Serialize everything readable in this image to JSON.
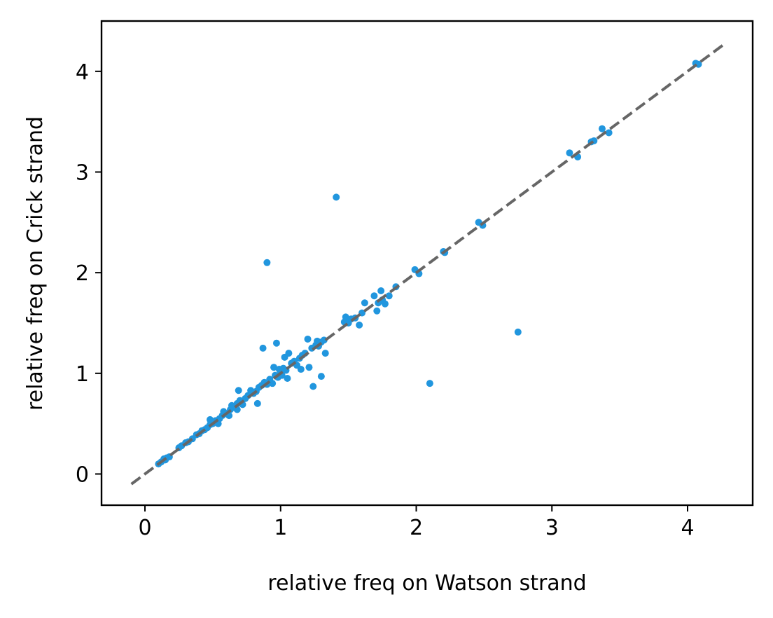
{
  "chart_data": {
    "type": "scatter",
    "title": "",
    "xlabel": "relative freq on Watson strand",
    "ylabel": "relative freq on Crick strand",
    "xlim": [
      -0.32,
      4.48
    ],
    "ylim": [
      -0.31,
      4.5
    ],
    "xticks": [
      "0",
      "1",
      "2",
      "3",
      "4"
    ],
    "yticks": [
      "0",
      "1",
      "2",
      "3",
      "4"
    ],
    "grid": false,
    "point_color": "#2196de",
    "reference_line": {
      "style": "dashed",
      "color": "#666666",
      "from": [
        -0.1,
        -0.1
      ],
      "to": [
        4.27,
        4.27
      ]
    },
    "series": [
      {
        "points": [
          [
            0.1,
            0.1
          ],
          [
            0.12,
            0.12
          ],
          [
            0.14,
            0.15
          ],
          [
            0.15,
            0.14
          ],
          [
            0.16,
            0.16
          ],
          [
            0.18,
            0.17
          ],
          [
            0.25,
            0.26
          ],
          [
            0.27,
            0.28
          ],
          [
            0.3,
            0.31
          ],
          [
            0.32,
            0.32
          ],
          [
            0.35,
            0.35
          ],
          [
            0.38,
            0.39
          ],
          [
            0.4,
            0.4
          ],
          [
            0.42,
            0.43
          ],
          [
            0.44,
            0.44
          ],
          [
            0.46,
            0.46
          ],
          [
            0.48,
            0.49
          ],
          [
            0.48,
            0.54
          ],
          [
            0.5,
            0.5
          ],
          [
            0.52,
            0.53
          ],
          [
            0.54,
            0.5
          ],
          [
            0.55,
            0.55
          ],
          [
            0.57,
            0.58
          ],
          [
            0.58,
            0.62
          ],
          [
            0.6,
            0.6
          ],
          [
            0.62,
            0.58
          ],
          [
            0.63,
            0.64
          ],
          [
            0.64,
            0.68
          ],
          [
            0.66,
            0.66
          ],
          [
            0.68,
            0.7
          ],
          [
            0.68,
            0.64
          ],
          [
            0.69,
            0.83
          ],
          [
            0.7,
            0.73
          ],
          [
            0.72,
            0.69
          ],
          [
            0.74,
            0.75
          ],
          [
            0.76,
            0.78
          ],
          [
            0.78,
            0.83
          ],
          [
            0.8,
            0.8
          ],
          [
            0.82,
            0.82
          ],
          [
            0.83,
            0.7
          ],
          [
            0.84,
            0.86
          ],
          [
            0.86,
            0.88
          ],
          [
            0.87,
            1.25
          ],
          [
            0.88,
            0.91
          ],
          [
            0.9,
            0.89
          ],
          [
            0.9,
            2.1
          ],
          [
            0.92,
            0.94
          ],
          [
            0.94,
            0.9
          ],
          [
            0.95,
            1.06
          ],
          [
            0.96,
            0.98
          ],
          [
            0.97,
            1.3
          ],
          [
            0.98,
            0.96
          ],
          [
            0.99,
            1.04
          ],
          [
            1.0,
            1.0
          ],
          [
            1.01,
            0.98
          ],
          [
            1.02,
            1.05
          ],
          [
            1.03,
            1.16
          ],
          [
            1.04,
            1.03
          ],
          [
            1.05,
            0.95
          ],
          [
            1.06,
            1.2
          ],
          [
            1.08,
            1.1
          ],
          [
            1.1,
            1.12
          ],
          [
            1.12,
            1.08
          ],
          [
            1.14,
            1.15
          ],
          [
            1.15,
            1.04
          ],
          [
            1.16,
            1.18
          ],
          [
            1.18,
            1.2
          ],
          [
            1.2,
            1.34
          ],
          [
            1.21,
            1.06
          ],
          [
            1.23,
            1.25
          ],
          [
            1.24,
            0.87
          ],
          [
            1.26,
            1.28
          ],
          [
            1.27,
            1.32
          ],
          [
            1.28,
            1.27
          ],
          [
            1.3,
            0.97
          ],
          [
            1.3,
            1.31
          ],
          [
            1.32,
            1.33
          ],
          [
            1.33,
            1.2
          ],
          [
            1.41,
            2.75
          ],
          [
            1.47,
            1.51
          ],
          [
            1.48,
            1.56
          ],
          [
            1.5,
            1.5
          ],
          [
            1.52,
            1.54
          ],
          [
            1.55,
            1.55
          ],
          [
            1.58,
            1.48
          ],
          [
            1.6,
            1.6
          ],
          [
            1.62,
            1.7
          ],
          [
            1.69,
            1.77
          ],
          [
            1.71,
            1.62
          ],
          [
            1.72,
            1.7
          ],
          [
            1.74,
            1.82
          ],
          [
            1.75,
            1.73
          ],
          [
            1.77,
            1.69
          ],
          [
            1.8,
            1.77
          ],
          [
            1.85,
            1.86
          ],
          [
            1.99,
            2.03
          ],
          [
            2.02,
            1.99
          ],
          [
            2.1,
            0.9
          ],
          [
            2.2,
            2.21
          ],
          [
            2.21,
            2.2
          ],
          [
            2.46,
            2.5
          ],
          [
            2.49,
            2.47
          ],
          [
            2.75,
            1.41
          ],
          [
            3.13,
            3.19
          ],
          [
            3.19,
            3.15
          ],
          [
            3.29,
            3.3
          ],
          [
            3.31,
            3.31
          ],
          [
            3.37,
            3.43
          ],
          [
            3.42,
            3.39
          ],
          [
            4.06,
            4.08
          ],
          [
            4.08,
            4.07
          ]
        ]
      }
    ]
  }
}
